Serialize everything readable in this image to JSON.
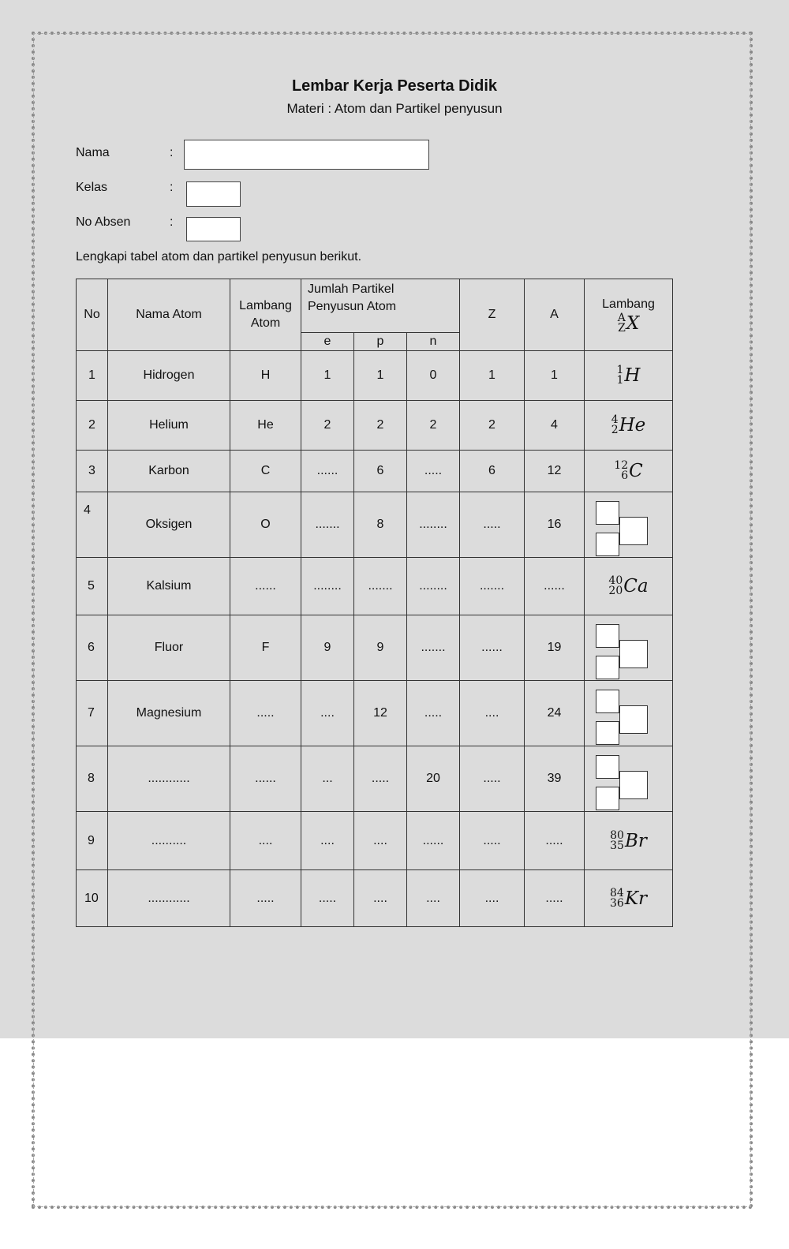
{
  "header": {
    "title": "Lembar Kerja Peserta Didik",
    "subtitle": "Materi : Atom dan Partikel penyusun"
  },
  "form": {
    "colon": ":",
    "name_label": "Nama",
    "class_label": "Kelas",
    "absen_label": "No Absen",
    "name_value": "",
    "class_value": "",
    "absen_value": ""
  },
  "instruction": "Lengkapi tabel atom dan partikel penyusun berikut.",
  "table": {
    "headers": {
      "no": "No",
      "nama": "Nama Atom",
      "lambang_atom": "Lambang Atom",
      "jumlah": "Jumlah Partikel Penyusun Atom",
      "e": "e",
      "p": "p",
      "n": "n",
      "z": "Z",
      "a": "A",
      "lambang": "Lambang",
      "lambang_sym": {
        "mass": "A",
        "atomic": "Z",
        "el": "X"
      }
    },
    "rows": [
      {
        "no": "1",
        "nama": "Hidrogen",
        "lambang": "H",
        "e": "1",
        "p": "1",
        "n": "0",
        "z": "1",
        "a": "1",
        "symbol": {
          "mass": "1",
          "atomic": "1",
          "el": "H"
        }
      },
      {
        "no": "2",
        "nama": "Helium",
        "lambang": "He",
        "e": "2",
        "p": "2",
        "n": "2",
        "z": "2",
        "a": "4",
        "symbol": {
          "mass": "4",
          "atomic": "2",
          "el": "He"
        }
      },
      {
        "no": "3",
        "nama": "Karbon",
        "lambang": "C",
        "e": "......",
        "p": "6",
        "n": ".....",
        "z": "6",
        "a": "12",
        "symbol": {
          "mass": "12",
          "atomic": "6",
          "el": "C"
        }
      },
      {
        "no": "4",
        "nama": "Oksigen",
        "lambang": "O",
        "e": ".......",
        "p": "8",
        "n": "........",
        "z": ".....",
        "a": "16",
        "symbol": null
      },
      {
        "no": "5",
        "nama": "Kalsium",
        "lambang": "......",
        "e": "........",
        "p": ".......",
        "n": "........",
        "z": ".......",
        "a": "......",
        "symbol": {
          "mass": "40",
          "atomic": "20",
          "el": "Ca"
        }
      },
      {
        "no": "6",
        "nama": "Fluor",
        "lambang": "F",
        "e": "9",
        "p": "9",
        "n": ".......",
        "z": "......",
        "a": "19",
        "symbol": null
      },
      {
        "no": "7",
        "nama": "Magnesium",
        "lambang": ".....",
        "e": "....",
        "p": "12",
        "n": ".....",
        "z": "....",
        "a": "24",
        "symbol": null
      },
      {
        "no": "8",
        "nama": "............",
        "lambang": "......",
        "e": "...",
        "p": ".....",
        "n": "20",
        "z": ".....",
        "a": "39",
        "symbol": null
      },
      {
        "no": "9",
        "nama": "..........",
        "lambang": "....",
        "e": "....",
        "p": "....",
        "n": "......",
        "z": ".....",
        "a": ".....",
        "symbol": {
          "mass": "80",
          "atomic": "35",
          "el": "Br"
        }
      },
      {
        "no": "10",
        "nama": "............",
        "lambang": ".....",
        "e": ".....",
        "p": "....",
        "n": "....",
        "z": "....",
        "a": ".....",
        "symbol": {
          "mass": "84",
          "atomic": "36",
          "el": "Kr"
        }
      }
    ]
  }
}
